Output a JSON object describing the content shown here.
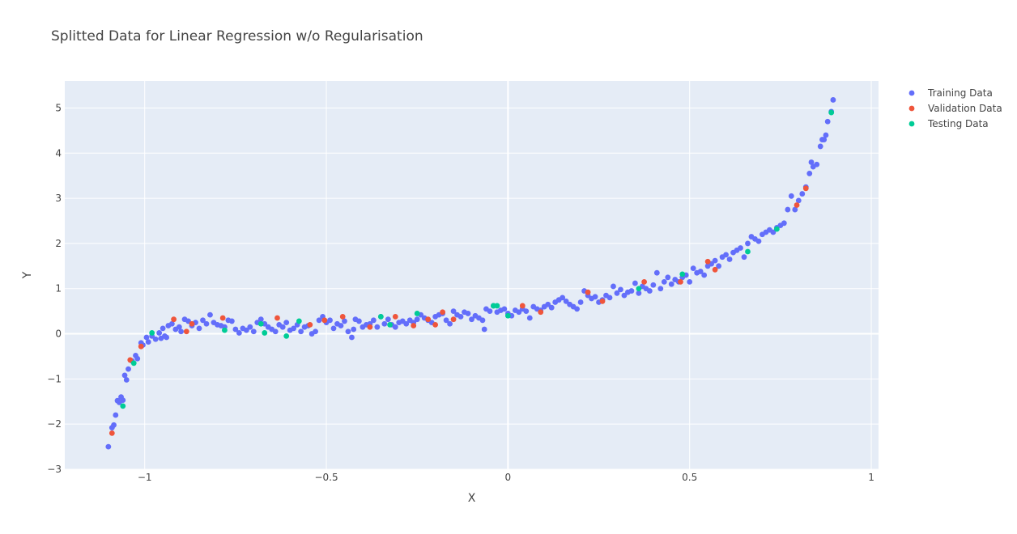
{
  "chart_data": {
    "type": "scatter",
    "title": "Splitted Data for Linear Regression w/o Regularisation",
    "xlabel": "X",
    "ylabel": "Y",
    "xlim": [
      -1.22,
      1.02
    ],
    "ylim": [
      -3,
      5.6
    ],
    "x_ticks": [
      -1,
      -0.5,
      0,
      0.5,
      1
    ],
    "x_tick_labels": [
      "−1",
      "−0.5",
      "0",
      "0.5",
      "1"
    ],
    "y_ticks": [
      -3,
      -2,
      -1,
      0,
      1,
      2,
      3,
      4,
      5
    ],
    "y_tick_labels": [
      "−3",
      "−2",
      "−1",
      "0",
      "1",
      "2",
      "3",
      "4",
      "5"
    ],
    "grid": true,
    "legend_position": "top-right",
    "plot_background": "#e5ecf6",
    "series": [
      {
        "name": "Training Data",
        "color": "#636efa",
        "points": [
          [
            -1.1,
            -2.5
          ],
          [
            -1.09,
            -2.08
          ],
          [
            -1.085,
            -2.02
          ],
          [
            -1.08,
            -1.8
          ],
          [
            -1.075,
            -1.48
          ],
          [
            -1.07,
            -1.52
          ],
          [
            -1.065,
            -1.4
          ],
          [
            -1.06,
            -1.47
          ],
          [
            -1.055,
            -0.92
          ],
          [
            -1.05,
            -1.02
          ],
          [
            -1.045,
            -0.78
          ],
          [
            -1.035,
            -0.6
          ],
          [
            -1.025,
            -0.48
          ],
          [
            -1.02,
            -0.55
          ],
          [
            -1.01,
            -0.2
          ],
          [
            -1.005,
            -0.25
          ],
          [
            -0.995,
            -0.08
          ],
          [
            -0.99,
            -0.18
          ],
          [
            -0.98,
            -0.05
          ],
          [
            -0.97,
            -0.12
          ],
          [
            -0.96,
            0.02
          ],
          [
            -0.955,
            -0.1
          ],
          [
            -0.95,
            0.12
          ],
          [
            -0.945,
            -0.05
          ],
          [
            -0.94,
            -0.08
          ],
          [
            -0.935,
            0.18
          ],
          [
            -0.925,
            0.22
          ],
          [
            -0.915,
            0.1
          ],
          [
            -0.905,
            0.15
          ],
          [
            -0.9,
            0.05
          ],
          [
            -0.89,
            0.32
          ],
          [
            -0.88,
            0.28
          ],
          [
            -0.87,
            0.18
          ],
          [
            -0.86,
            0.25
          ],
          [
            -0.85,
            0.12
          ],
          [
            -0.84,
            0.3
          ],
          [
            -0.83,
            0.22
          ],
          [
            -0.82,
            0.42
          ],
          [
            -0.81,
            0.25
          ],
          [
            -0.8,
            0.2
          ],
          [
            -0.79,
            0.18
          ],
          [
            -0.78,
            0.15
          ],
          [
            -0.77,
            0.3
          ],
          [
            -0.76,
            0.28
          ],
          [
            -0.75,
            0.1
          ],
          [
            -0.74,
            0.02
          ],
          [
            -0.73,
            0.12
          ],
          [
            -0.72,
            0.08
          ],
          [
            -0.71,
            0.15
          ],
          [
            -0.7,
            0.05
          ],
          [
            -0.69,
            0.25
          ],
          [
            -0.68,
            0.32
          ],
          [
            -0.67,
            0.22
          ],
          [
            -0.66,
            0.15
          ],
          [
            -0.65,
            0.1
          ],
          [
            -0.64,
            0.05
          ],
          [
            -0.63,
            0.2
          ],
          [
            -0.62,
            0.15
          ],
          [
            -0.61,
            0.25
          ],
          [
            -0.6,
            0.08
          ],
          [
            -0.59,
            0.12
          ],
          [
            -0.58,
            0.2
          ],
          [
            -0.57,
            0.05
          ],
          [
            -0.56,
            0.15
          ],
          [
            -0.55,
            0.18
          ],
          [
            -0.54,
            0.0
          ],
          [
            -0.53,
            0.05
          ],
          [
            -0.52,
            0.3
          ],
          [
            -0.51,
            0.38
          ],
          [
            -0.5,
            0.25
          ],
          [
            -0.49,
            0.3
          ],
          [
            -0.48,
            0.12
          ],
          [
            -0.47,
            0.22
          ],
          [
            -0.46,
            0.18
          ],
          [
            -0.45,
            0.28
          ],
          [
            -0.44,
            0.05
          ],
          [
            -0.43,
            -0.08
          ],
          [
            -0.425,
            0.1
          ],
          [
            -0.42,
            0.32
          ],
          [
            -0.41,
            0.28
          ],
          [
            -0.4,
            0.15
          ],
          [
            -0.39,
            0.2
          ],
          [
            -0.38,
            0.22
          ],
          [
            -0.37,
            0.3
          ],
          [
            -0.36,
            0.15
          ],
          [
            -0.35,
            0.38
          ],
          [
            -0.34,
            0.22
          ],
          [
            -0.33,
            0.32
          ],
          [
            -0.32,
            0.2
          ],
          [
            -0.31,
            0.15
          ],
          [
            -0.3,
            0.25
          ],
          [
            -0.29,
            0.28
          ],
          [
            -0.28,
            0.22
          ],
          [
            -0.27,
            0.3
          ],
          [
            -0.26,
            0.25
          ],
          [
            -0.25,
            0.32
          ],
          [
            -0.24,
            0.42
          ],
          [
            -0.23,
            0.35
          ],
          [
            -0.22,
            0.3
          ],
          [
            -0.21,
            0.25
          ],
          [
            -0.2,
            0.38
          ],
          [
            -0.19,
            0.42
          ],
          [
            -0.18,
            0.45
          ],
          [
            -0.17,
            0.3
          ],
          [
            -0.16,
            0.22
          ],
          [
            -0.15,
            0.5
          ],
          [
            -0.14,
            0.42
          ],
          [
            -0.13,
            0.38
          ],
          [
            -0.12,
            0.48
          ],
          [
            -0.11,
            0.45
          ],
          [
            -0.1,
            0.32
          ],
          [
            -0.09,
            0.4
          ],
          [
            -0.08,
            0.35
          ],
          [
            -0.07,
            0.3
          ],
          [
            -0.065,
            0.1
          ],
          [
            -0.06,
            0.55
          ],
          [
            -0.05,
            0.5
          ],
          [
            -0.04,
            0.62
          ],
          [
            -0.03,
            0.48
          ],
          [
            -0.02,
            0.52
          ],
          [
            -0.01,
            0.55
          ],
          [
            0.0,
            0.45
          ],
          [
            0.01,
            0.4
          ],
          [
            0.02,
            0.52
          ],
          [
            0.03,
            0.48
          ],
          [
            0.04,
            0.55
          ],
          [
            0.05,
            0.5
          ],
          [
            0.06,
            0.35
          ],
          [
            0.07,
            0.6
          ],
          [
            0.08,
            0.55
          ],
          [
            0.09,
            0.52
          ],
          [
            0.1,
            0.6
          ],
          [
            0.11,
            0.65
          ],
          [
            0.12,
            0.58
          ],
          [
            0.13,
            0.7
          ],
          [
            0.14,
            0.75
          ],
          [
            0.15,
            0.8
          ],
          [
            0.16,
            0.72
          ],
          [
            0.17,
            0.65
          ],
          [
            0.18,
            0.6
          ],
          [
            0.19,
            0.55
          ],
          [
            0.2,
            0.7
          ],
          [
            0.21,
            0.95
          ],
          [
            0.22,
            0.85
          ],
          [
            0.23,
            0.78
          ],
          [
            0.24,
            0.82
          ],
          [
            0.25,
            0.7
          ],
          [
            0.26,
            0.75
          ],
          [
            0.27,
            0.85
          ],
          [
            0.28,
            0.8
          ],
          [
            0.29,
            1.05
          ],
          [
            0.3,
            0.9
          ],
          [
            0.31,
            0.98
          ],
          [
            0.32,
            0.85
          ],
          [
            0.33,
            0.92
          ],
          [
            0.34,
            0.95
          ],
          [
            0.35,
            1.12
          ],
          [
            0.36,
            0.9
          ],
          [
            0.37,
            1.05
          ],
          [
            0.38,
            1.0
          ],
          [
            0.39,
            0.95
          ],
          [
            0.4,
            1.08
          ],
          [
            0.41,
            1.35
          ],
          [
            0.42,
            1.0
          ],
          [
            0.43,
            1.15
          ],
          [
            0.44,
            1.25
          ],
          [
            0.45,
            1.1
          ],
          [
            0.46,
            1.2
          ],
          [
            0.47,
            1.15
          ],
          [
            0.48,
            1.25
          ],
          [
            0.49,
            1.3
          ],
          [
            0.5,
            1.15
          ],
          [
            0.51,
            1.45
          ],
          [
            0.52,
            1.35
          ],
          [
            0.53,
            1.38
          ],
          [
            0.54,
            1.3
          ],
          [
            0.55,
            1.5
          ],
          [
            0.56,
            1.55
          ],
          [
            0.57,
            1.62
          ],
          [
            0.58,
            1.5
          ],
          [
            0.59,
            1.7
          ],
          [
            0.6,
            1.75
          ],
          [
            0.61,
            1.65
          ],
          [
            0.62,
            1.8
          ],
          [
            0.63,
            1.85
          ],
          [
            0.64,
            1.9
          ],
          [
            0.65,
            1.7
          ],
          [
            0.66,
            2.0
          ],
          [
            0.67,
            2.15
          ],
          [
            0.68,
            2.1
          ],
          [
            0.69,
            2.05
          ],
          [
            0.7,
            2.2
          ],
          [
            0.71,
            2.25
          ],
          [
            0.72,
            2.3
          ],
          [
            0.73,
            2.25
          ],
          [
            0.74,
            2.35
          ],
          [
            0.75,
            2.4
          ],
          [
            0.76,
            2.45
          ],
          [
            0.77,
            2.75
          ],
          [
            0.78,
            3.05
          ],
          [
            0.79,
            2.75
          ],
          [
            0.8,
            2.95
          ],
          [
            0.81,
            3.1
          ],
          [
            0.82,
            3.25
          ],
          [
            0.83,
            3.55
          ],
          [
            0.835,
            3.8
          ],
          [
            0.84,
            3.7
          ],
          [
            0.85,
            3.75
          ],
          [
            0.86,
            4.15
          ],
          [
            0.865,
            4.3
          ],
          [
            0.87,
            4.3
          ],
          [
            0.875,
            4.4
          ],
          [
            0.88,
            4.7
          ],
          [
            0.89,
            4.92
          ],
          [
            0.895,
            5.18
          ]
        ]
      },
      {
        "name": "Validation Data",
        "color": "#ef553b",
        "points": [
          [
            -1.09,
            -2.2
          ],
          [
            -1.04,
            -0.58
          ],
          [
            -1.01,
            -0.28
          ],
          [
            -0.92,
            0.32
          ],
          [
            -0.885,
            0.05
          ],
          [
            -0.87,
            0.22
          ],
          [
            -0.785,
            0.35
          ],
          [
            -0.635,
            0.35
          ],
          [
            -0.545,
            0.2
          ],
          [
            -0.505,
            0.3
          ],
          [
            -0.455,
            0.38
          ],
          [
            -0.38,
            0.15
          ],
          [
            -0.31,
            0.38
          ],
          [
            -0.26,
            0.18
          ],
          [
            -0.22,
            0.32
          ],
          [
            -0.2,
            0.2
          ],
          [
            -0.18,
            0.48
          ],
          [
            -0.15,
            0.32
          ],
          [
            0.04,
            0.62
          ],
          [
            0.09,
            0.48
          ],
          [
            0.22,
            0.92
          ],
          [
            0.26,
            0.72
          ],
          [
            0.375,
            1.15
          ],
          [
            0.475,
            1.15
          ],
          [
            0.55,
            1.6
          ],
          [
            0.57,
            1.42
          ],
          [
            0.795,
            2.85
          ],
          [
            0.82,
            3.22
          ]
        ]
      },
      {
        "name": "Testing Data",
        "color": "#00cc96",
        "points": [
          [
            -1.06,
            -1.6
          ],
          [
            -1.03,
            -0.65
          ],
          [
            -0.98,
            0.02
          ],
          [
            -0.78,
            0.08
          ],
          [
            -0.68,
            0.22
          ],
          [
            -0.67,
            0.02
          ],
          [
            -0.61,
            -0.05
          ],
          [
            -0.575,
            0.28
          ],
          [
            -0.35,
            0.38
          ],
          [
            -0.325,
            0.2
          ],
          [
            -0.25,
            0.45
          ],
          [
            -0.04,
            0.62
          ],
          [
            -0.03,
            0.62
          ],
          [
            0.0,
            0.4
          ],
          [
            0.36,
            1.0
          ],
          [
            0.48,
            1.32
          ],
          [
            0.66,
            1.82
          ],
          [
            0.74,
            2.32
          ],
          [
            0.89,
            4.9
          ]
        ]
      }
    ]
  }
}
